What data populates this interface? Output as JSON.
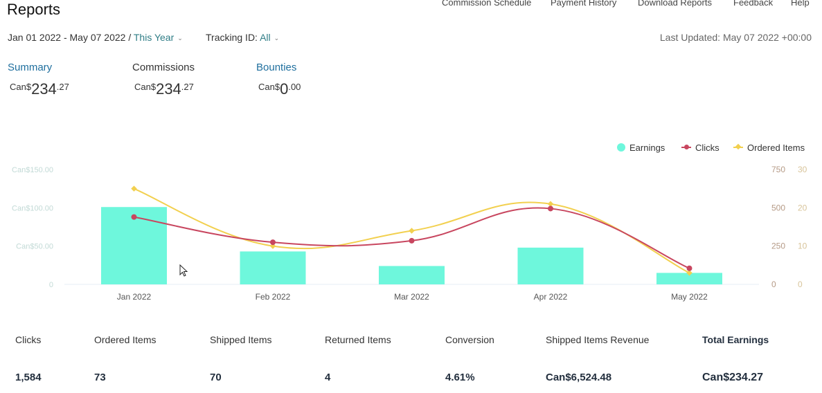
{
  "page": {
    "title": "Reports",
    "nav": [
      "Commission Schedule",
      "Payment History",
      "Download Reports",
      "Feedback",
      "Help"
    ]
  },
  "filters": {
    "date_range": "Jan 01 2022 - May 07 2022 /",
    "period": "This Year",
    "tracking_label": "Tracking ID:",
    "tracking_value": "All",
    "last_updated": "Last Updated: May 07 2022 +00:00"
  },
  "summary_tabs": [
    {
      "label": "Summary",
      "currency": "Can$",
      "integer": "234",
      "decimal": ".27"
    },
    {
      "label": "Commissions",
      "currency": "Can$",
      "integer": "234",
      "decimal": ".27"
    },
    {
      "label": "Bounties",
      "currency": "Can$",
      "integer": "0",
      "decimal": ".00"
    }
  ],
  "legend": [
    "Earnings",
    "Clicks",
    "Ordered Items"
  ],
  "colors": {
    "earnings": "#6ef7dc",
    "clicks": "#c8465f",
    "ordered_items": "#f2d04f",
    "link": "#2f7d86",
    "tab_active": "#1f6f9e"
  },
  "chart_data": {
    "type": "bar",
    "categories": [
      "Jan 2022",
      "Feb 2022",
      "Mar 2022",
      "Apr 2022",
      "May 2022"
    ],
    "series": [
      {
        "name": "Earnings",
        "type": "bar",
        "axis": "left",
        "values": [
          101,
          43,
          24,
          48,
          15
        ]
      },
      {
        "name": "Clicks",
        "type": "line",
        "axis": "right",
        "values": [
          440,
          275,
          285,
          495,
          105
        ]
      },
      {
        "name": "Ordered Items",
        "type": "line",
        "axis": "right2",
        "values": [
          25,
          10,
          14,
          21,
          3
        ]
      }
    ],
    "y_left": {
      "ylim": [
        0,
        150
      ],
      "ticks": [
        "0",
        "Can$50.00",
        "Can$100.00",
        "Can$150.00"
      ]
    },
    "y_right": {
      "ylim": [
        0,
        750
      ],
      "ticks": [
        "0",
        "250",
        "500",
        "750"
      ]
    },
    "y_right2": {
      "ylim": [
        0,
        30
      ],
      "ticks": [
        "0",
        "10",
        "20",
        "30"
      ]
    },
    "legend_position": "top-right"
  },
  "stats": {
    "headers": [
      "Clicks",
      "Ordered Items",
      "Shipped Items",
      "Returned Items",
      "Conversion",
      "Shipped Items Revenue",
      "Total Earnings"
    ],
    "values": [
      "1,584",
      "73",
      "70",
      "4",
      "4.61%",
      "Can$6,524.48",
      "Can$234.27"
    ]
  }
}
